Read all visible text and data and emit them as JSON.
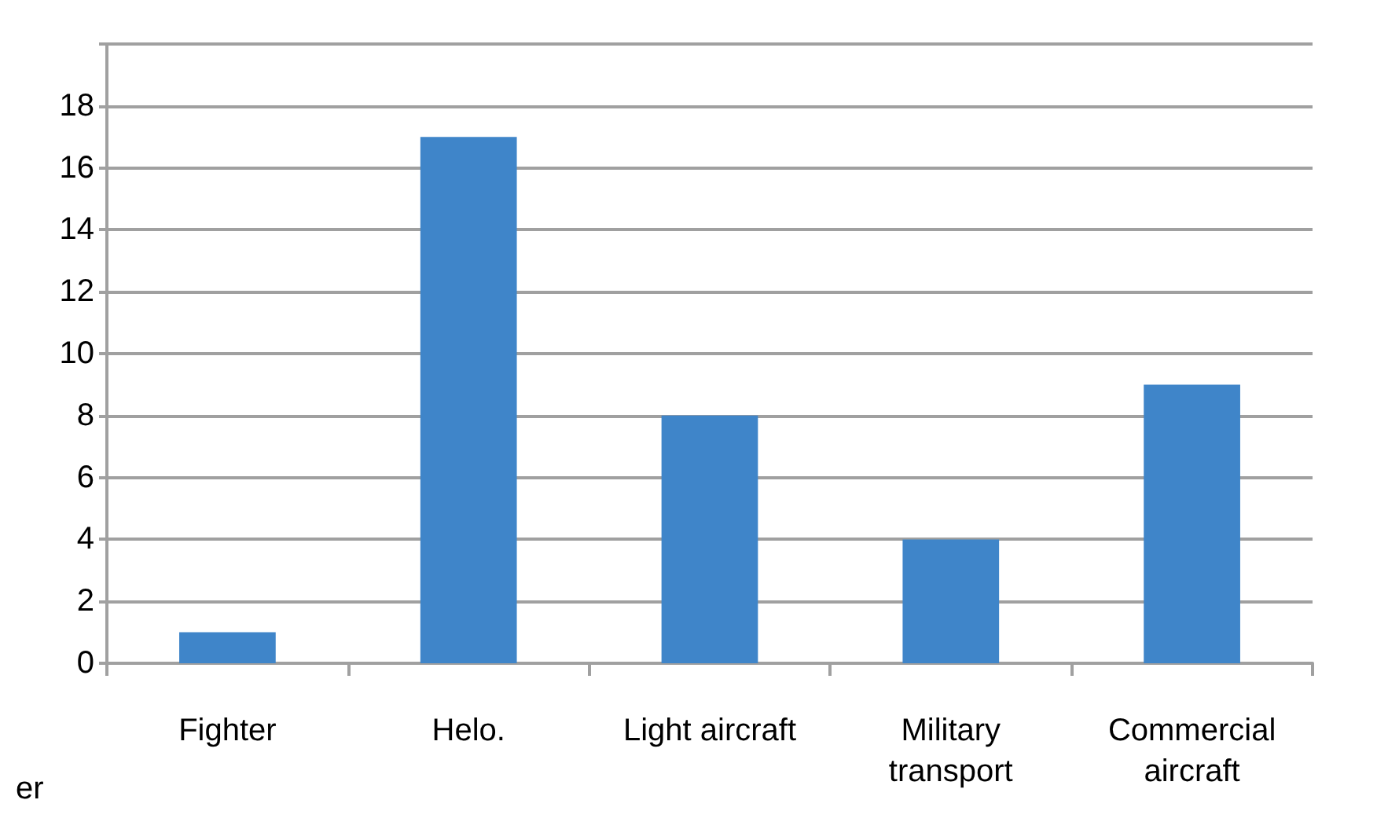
{
  "chart_data": {
    "type": "bar",
    "categories": [
      "Fighter",
      "Helo.",
      "Light aircraft",
      "Military\ntransport",
      "Commercial\naircraft"
    ],
    "values": [
      1,
      17,
      8,
      4,
      9
    ],
    "color": "#3f85c9",
    "ylim": [
      0,
      20
    ],
    "yticks": [
      0,
      2,
      4,
      6,
      8,
      10,
      12,
      14,
      16,
      18,
      {
        "value": 20,
        "label": null
      }
    ],
    "grid": true,
    "annotations": [
      "er"
    ]
  }
}
